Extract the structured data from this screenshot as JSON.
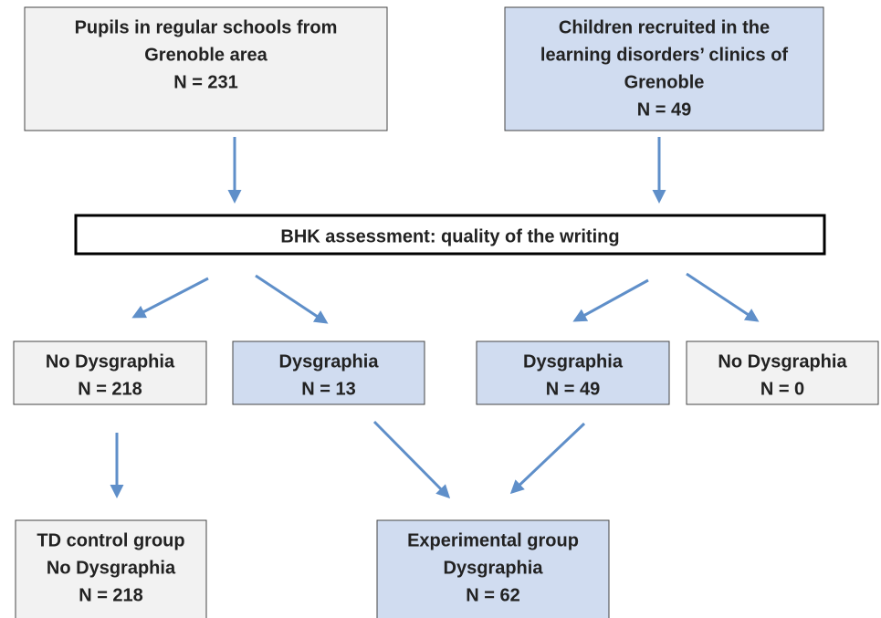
{
  "nodes": [
    {
      "lines": [
        "Pupils in regular schools from",
        "Grenoble area",
        "N = 231"
      ]
    },
    {
      "lines": [
        "Children recruited in the",
        "learning disorders’ clinics of",
        "Grenoble",
        "N = 49"
      ]
    },
    {
      "lines": [
        "BHK assessment: quality of the writing"
      ]
    },
    {
      "lines": [
        "No Dysgraphia",
        "N = 218"
      ]
    },
    {
      "lines": [
        "Dysgraphia",
        "N = 13"
      ]
    },
    {
      "lines": [
        "Dysgraphia",
        "N = 49"
      ]
    },
    {
      "lines": [
        "No Dysgraphia",
        "N = 0"
      ]
    },
    {
      "lines": [
        "TD control group",
        "No Dysgraphia",
        "N = 218"
      ]
    },
    {
      "lines": [
        "Experimental group",
        "Dysgraphia",
        "N = 62"
      ]
    }
  ]
}
